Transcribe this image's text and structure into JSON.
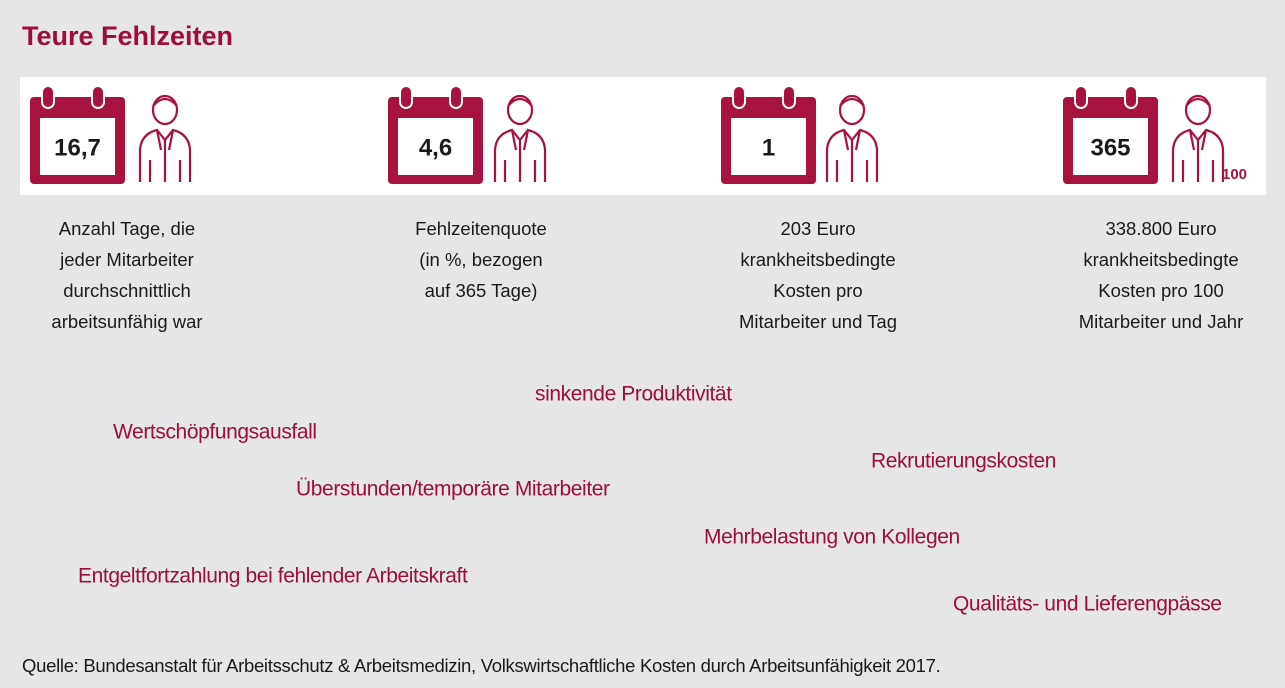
{
  "title": "Teure Fehlzeiten",
  "stats": [
    {
      "icon_value": "16,7",
      "description": [
        "Anzahl Tage, die",
        "jeder Mitarbeiter",
        "durchschnittlich",
        "arbeitsunfähig war"
      ]
    },
    {
      "icon_value": "4,6",
      "description": [
        "Fehlzeitenquote",
        "(in %, bezogen",
        "auf 365 Tage)"
      ]
    },
    {
      "icon_value": "1",
      "description": [
        "203 Euro",
        "krankheitsbedingte",
        "Kosten pro",
        "Mitarbeiter und Tag"
      ]
    },
    {
      "icon_value": "365",
      "icon_note": "100",
      "description": [
        "338.800 Euro",
        "krankheitsbedingte",
        "Kosten pro 100",
        "Mitarbeiter und Jahr"
      ]
    }
  ],
  "cost_factors": [
    "sinkende Produktivität",
    "Wertschöpfungsausfall",
    "Rekrutierungskosten",
    "Überstunden/temporäre Mitarbeiter",
    "Mehrbelastung von Kollegen",
    "Entgeltfortzahlung bei fehlender Arbeitskraft",
    "Qualitäts- und Lieferengpässe"
  ],
  "source": "Quelle: Bundesanstalt für Arbeitsschutz & Arbeitsmedizin, Volkswirtschaftliche Kosten durch Arbeitsunfähigkeit 2017."
}
